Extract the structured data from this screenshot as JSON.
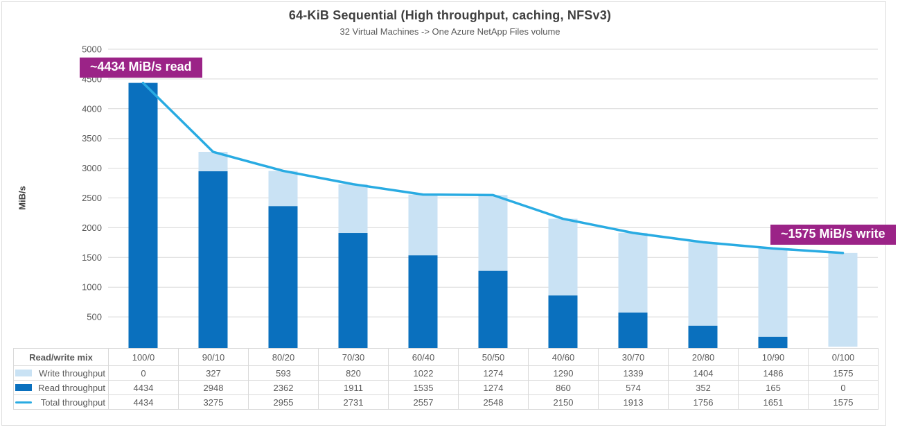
{
  "header": {
    "title": "64-KiB Sequential (High throughput, caching, NFSv3)",
    "subtitle": "32 Virtual Machines -> One Azure NetApp Files volume"
  },
  "axes": {
    "y_label": "MiB/s",
    "y_ticks": [
      5000,
      4500,
      4000,
      3500,
      3000,
      2500,
      2000,
      1500,
      1000,
      500
    ],
    "y_max": 5000
  },
  "annotations": {
    "read": "~4434 MiB/s read",
    "write": "~1575 MiB/s write"
  },
  "colors": {
    "read_bar": "#0A70BE",
    "write_bar": "#C9E2F4",
    "total_line": "#29ABE2",
    "annotation_bg": "#9B2387",
    "grid": "#D9D9D9",
    "axis_text": "#595959",
    "title_text": "#3F3F3F"
  },
  "table": {
    "header_label": "Read/write mix",
    "rows": [
      {
        "label": "Write throughput",
        "swatch": "write",
        "series": 0
      },
      {
        "label": "Read throughput",
        "swatch": "read",
        "series": 1
      },
      {
        "label": "Total throughput",
        "swatch": "line",
        "series": 2
      }
    ]
  },
  "chart_data": {
    "type": "bar",
    "subtype": "stacked-bar-with-line-overlay",
    "title": "64-KiB Sequential (High throughput, caching, NFSv3)",
    "subtitle": "32 Virtual Machines -> One Azure NetApp Files volume",
    "xlabel": "Read/write mix",
    "ylabel": "MiB/s",
    "ylim": [
      0,
      5000
    ],
    "grid": "horizontal",
    "legend_position": "table-left",
    "categories": [
      "100/0",
      "90/10",
      "80/20",
      "70/30",
      "60/40",
      "50/50",
      "40/60",
      "30/70",
      "20/80",
      "10/90",
      "0/100"
    ],
    "series": [
      {
        "name": "Write throughput",
        "type": "bar",
        "stack_order": "top",
        "values": [
          0,
          327,
          593,
          820,
          1022,
          1274,
          1290,
          1339,
          1404,
          1486,
          1575
        ]
      },
      {
        "name": "Read throughput",
        "type": "bar",
        "stack_order": "bottom",
        "values": [
          4434,
          2948,
          2362,
          1911,
          1535,
          1274,
          860,
          574,
          352,
          165,
          0
        ]
      },
      {
        "name": "Total throughput",
        "type": "line",
        "values": [
          4434,
          3275,
          2955,
          2731,
          2557,
          2548,
          2150,
          1913,
          1756,
          1651,
          1575
        ]
      }
    ]
  }
}
